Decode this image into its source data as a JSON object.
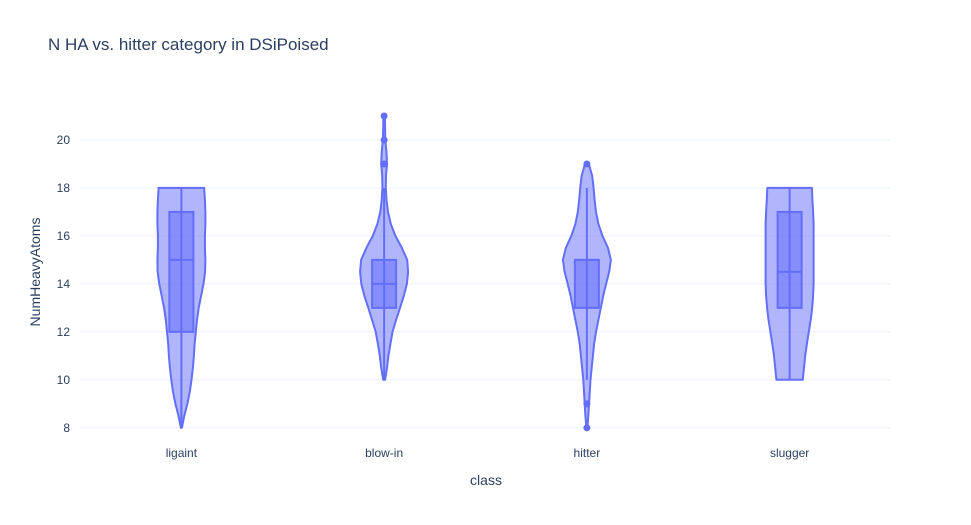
{
  "chart_data": {
    "type": "violin",
    "title": "N HA vs. hitter category in DSiPoised",
    "xlabel": "class",
    "ylabel": "NumHeavyAtoms",
    "ylim": [
      7.7,
      22.5
    ],
    "yticks": [
      8,
      10,
      12,
      14,
      16,
      18,
      20
    ],
    "categories": [
      "ligaint",
      "blow-in",
      "hitter",
      "slugger"
    ],
    "grid": true,
    "colors": {
      "fill": "#636efa",
      "line": "#636efa",
      "text": "#2a3f5f",
      "grid": "#ebf0f8"
    },
    "violins": [
      {
        "category": "ligaint",
        "profile": [
          [
            8,
            0.02
          ],
          [
            8.5,
            0.12
          ],
          [
            9,
            0.25
          ],
          [
            9.5,
            0.35
          ],
          [
            10,
            0.42
          ],
          [
            10.5,
            0.48
          ],
          [
            11,
            0.52
          ],
          [
            11.5,
            0.55
          ],
          [
            12,
            0.6
          ],
          [
            12.5,
            0.65
          ],
          [
            13,
            0.72
          ],
          [
            13.5,
            0.82
          ],
          [
            14,
            0.92
          ],
          [
            14.5,
            0.99
          ],
          [
            15,
            1.0
          ],
          [
            15.5,
            0.98
          ],
          [
            16,
            0.98
          ],
          [
            16.5,
            1.0
          ],
          [
            17,
            1.0
          ],
          [
            17.5,
            0.98
          ],
          [
            18,
            0.95
          ]
        ],
        "box": {
          "q1": 12,
          "median": 15,
          "q3": 17,
          "whisker_low": 8,
          "whisker_high": 18
        },
        "outliers": []
      },
      {
        "category": "blow-in",
        "profile": [
          [
            10,
            0.04
          ],
          [
            10.5,
            0.12
          ],
          [
            11,
            0.18
          ],
          [
            11.5,
            0.26
          ],
          [
            12,
            0.35
          ],
          [
            12.5,
            0.5
          ],
          [
            13,
            0.66
          ],
          [
            13.5,
            0.82
          ],
          [
            14,
            0.95
          ],
          [
            14.5,
            1.0
          ],
          [
            15,
            0.96
          ],
          [
            15.5,
            0.74
          ],
          [
            16,
            0.47
          ],
          [
            16.5,
            0.28
          ],
          [
            17,
            0.16
          ],
          [
            17.5,
            0.1
          ],
          [
            18,
            0.07
          ],
          [
            18.5,
            0.08
          ],
          [
            19,
            0.12
          ],
          [
            19.5,
            0.1
          ],
          [
            20,
            0.05
          ],
          [
            20.5,
            0.04
          ],
          [
            21,
            0.03
          ]
        ],
        "box": {
          "q1": 13,
          "median": 14,
          "q3": 15,
          "whisker_low": 10,
          "whisker_high": 18
        },
        "outliers": [
          19,
          20,
          21
        ]
      },
      {
        "category": "hitter",
        "profile": [
          [
            8,
            0.02
          ],
          [
            8.5,
            0.06
          ],
          [
            9,
            0.09
          ],
          [
            9.5,
            0.12
          ],
          [
            10,
            0.15
          ],
          [
            10.5,
            0.2
          ],
          [
            11,
            0.25
          ],
          [
            11.5,
            0.3
          ],
          [
            12,
            0.38
          ],
          [
            12.5,
            0.48
          ],
          [
            13,
            0.58
          ],
          [
            13.5,
            0.68
          ],
          [
            14,
            0.8
          ],
          [
            14.5,
            0.93
          ],
          [
            15,
            1.0
          ],
          [
            15.5,
            0.88
          ],
          [
            16,
            0.65
          ],
          [
            16.5,
            0.48
          ],
          [
            17,
            0.38
          ],
          [
            17.5,
            0.32
          ],
          [
            18,
            0.28
          ],
          [
            18.5,
            0.22
          ],
          [
            19,
            0.08
          ]
        ],
        "box": {
          "q1": 13,
          "median": 15,
          "q3": 15,
          "whisker_low": 10,
          "whisker_high": 18
        },
        "outliers": [
          8,
          9,
          19
        ]
      },
      {
        "category": "slugger",
        "profile": [
          [
            10,
            0.55
          ],
          [
            10.5,
            0.6
          ],
          [
            11,
            0.65
          ],
          [
            11.5,
            0.72
          ],
          [
            12,
            0.8
          ],
          [
            12.5,
            0.88
          ],
          [
            13,
            0.94
          ],
          [
            13.5,
            0.98
          ],
          [
            14,
            1.0
          ],
          [
            14.5,
            1.0
          ],
          [
            15,
            1.0
          ],
          [
            15.5,
            1.0
          ],
          [
            16,
            1.0
          ],
          [
            16.5,
            1.0
          ],
          [
            17,
            0.98
          ],
          [
            17.5,
            0.95
          ],
          [
            18,
            0.93
          ]
        ],
        "box": {
          "q1": 13,
          "median": 14.5,
          "q3": 17,
          "whisker_low": 10,
          "whisker_high": 18
        },
        "outliers": []
      }
    ]
  }
}
